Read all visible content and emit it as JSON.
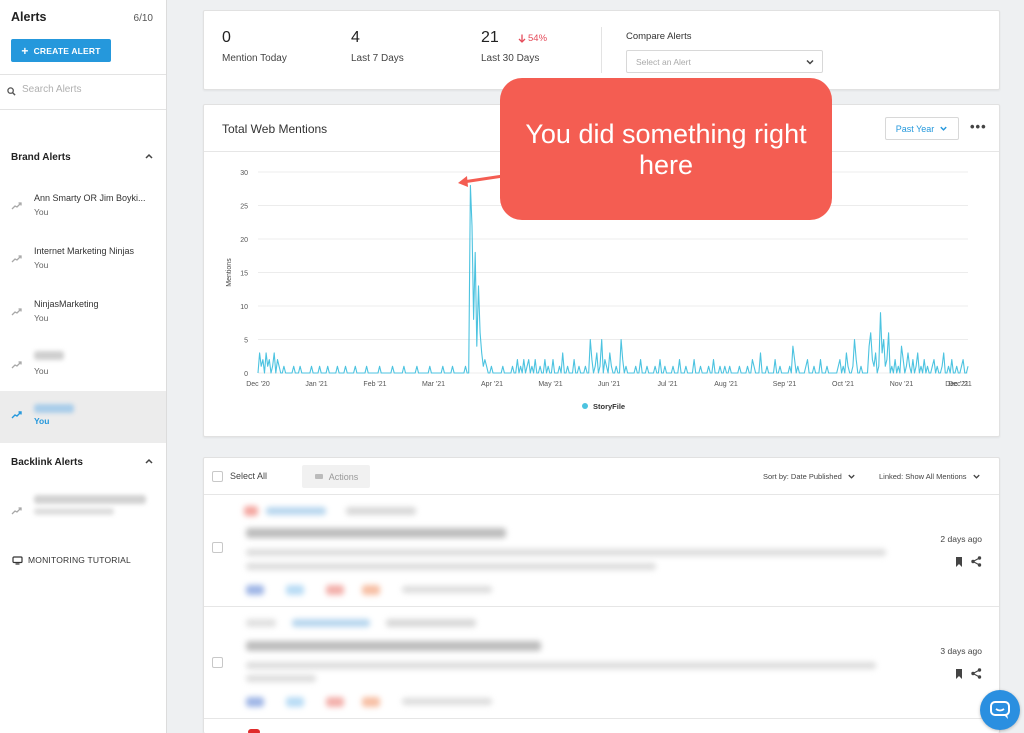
{
  "sidebar": {
    "title": "Alerts",
    "count": "6/10",
    "create_label": "CREATE ALERT",
    "search_placeholder": "Search Alerts",
    "brand_section": "Brand Alerts",
    "backlink_section": "Backlink Alerts",
    "alerts": [
      {
        "name": "Ann Smarty OR Jim Boyki...",
        "owner": "You"
      },
      {
        "name": "Internet Marketing Ninjas",
        "owner": "You"
      },
      {
        "name": "NinjasMarketing",
        "owner": "You"
      },
      {
        "name": "",
        "owner": "You"
      },
      {
        "name": "",
        "owner": "You"
      }
    ],
    "tutorial_label": "MONITORING TUTORIAL"
  },
  "stats": {
    "today": {
      "value": "0",
      "label": "Mention Today"
    },
    "week": {
      "value": "4",
      "label": "Last 7 Days"
    },
    "month": {
      "value": "21",
      "label": "Last 30 Days",
      "delta": "54%"
    },
    "compare_label": "Compare Alerts",
    "compare_placeholder": "Select an Alert"
  },
  "chart_card": {
    "title": "Total Web Mentions",
    "range": "Past Year",
    "more": "•••"
  },
  "callout": {
    "line1": "You did something right",
    "line2": "here"
  },
  "chart_data": {
    "type": "line",
    "ylabel": "Mentions",
    "ylim": [
      0,
      30
    ],
    "yticks": [
      0,
      5,
      10,
      15,
      20,
      25,
      30
    ],
    "x_ticks": [
      "Dec '20",
      "Jan '21",
      "Feb '21",
      "Mar '21",
      "Apr '21",
      "May '21",
      "Jun '21",
      "Jul '21",
      "Aug '21",
      "Sep '21",
      "Oct '21",
      "Nov '21",
      "Dec '21",
      "Dec '21"
    ],
    "series": [
      {
        "name": "StoryFile",
        "color": "#4cc3e0",
        "values": [
          0,
          3,
          1,
          2,
          0,
          3,
          1,
          2,
          0,
          1,
          3,
          0,
          2,
          1,
          0,
          0,
          1,
          0,
          0,
          0,
          0,
          0,
          1,
          0,
          0,
          0,
          1,
          0,
          0,
          0,
          0,
          0,
          0,
          1,
          0,
          0,
          0,
          0,
          1,
          0,
          0,
          0,
          0,
          1,
          0,
          0,
          0,
          0,
          0,
          1,
          0,
          0,
          0,
          0,
          1,
          0,
          0,
          0,
          0,
          0,
          1,
          0,
          0,
          0,
          0,
          0,
          0,
          1,
          0,
          0,
          0,
          0,
          0,
          0,
          0,
          1,
          0,
          0,
          0,
          0,
          0,
          0,
          0,
          1,
          0,
          0,
          0,
          0,
          0,
          0,
          1,
          0,
          0,
          0,
          0,
          0,
          0,
          0,
          1,
          0,
          0,
          0,
          0,
          0,
          0,
          0,
          1,
          0,
          0,
          0,
          0,
          0,
          0,
          0,
          1,
          0,
          0,
          0,
          0,
          0,
          1,
          0,
          0,
          0,
          0,
          0,
          0,
          0,
          1,
          0,
          0,
          28,
          22,
          8,
          18,
          4,
          13,
          6,
          3,
          1,
          2,
          1,
          0,
          0,
          1,
          0,
          0,
          0,
          0,
          0,
          0,
          1,
          0,
          0,
          0,
          0,
          0,
          1,
          0,
          0,
          2,
          0,
          1,
          0,
          2,
          0,
          1,
          2,
          0,
          1,
          0,
          2,
          0,
          0,
          1,
          0,
          0,
          2,
          0,
          1,
          0,
          0,
          2,
          0,
          0,
          0,
          1,
          0,
          3,
          0,
          0,
          1,
          0,
          0,
          0,
          2,
          0,
          0,
          1,
          0,
          0,
          0,
          1,
          0,
          0,
          5,
          2,
          0,
          1,
          3,
          0,
          1,
          5,
          0,
          2,
          1,
          0,
          3,
          1,
          0,
          0,
          1,
          0,
          0,
          5,
          2,
          0,
          1,
          0,
          0,
          0,
          0,
          0,
          1,
          0,
          0,
          2,
          0,
          0,
          0,
          1,
          0,
          0,
          0,
          0,
          1,
          0,
          0,
          2,
          0,
          0,
          1,
          0,
          0,
          0,
          0,
          1,
          0,
          0,
          0,
          2,
          0,
          0,
          0,
          1,
          0,
          0,
          0,
          0,
          2,
          0,
          0,
          0,
          1,
          0,
          0,
          0,
          0,
          1,
          0,
          0,
          2,
          0,
          0,
          0,
          1,
          0,
          0,
          1,
          0,
          0,
          1,
          0,
          0,
          0,
          0,
          0,
          1,
          0,
          0,
          0,
          0,
          1,
          0,
          0,
          2,
          1,
          0,
          0,
          0,
          3,
          0,
          0,
          0,
          1,
          0,
          0,
          0,
          0,
          2,
          0,
          0,
          1,
          0,
          0,
          0,
          0,
          0,
          1,
          0,
          4,
          2,
          0,
          1,
          0,
          0,
          0,
          0,
          1,
          2,
          0,
          0,
          0,
          1,
          0,
          0,
          0,
          2,
          0,
          0,
          0,
          1,
          0,
          0,
          0,
          0,
          0,
          0,
          1,
          2,
          0,
          1,
          0,
          3,
          1,
          0,
          0,
          1,
          5,
          2,
          0,
          0,
          1,
          0,
          0,
          0,
          0,
          4,
          6,
          2,
          1,
          3,
          0,
          1,
          9,
          3,
          5,
          1,
          2,
          6,
          0,
          1,
          0,
          2,
          0,
          1,
          0,
          4,
          2,
          0,
          1,
          3,
          1,
          0,
          2,
          0,
          1,
          3,
          0,
          1,
          0,
          2,
          0,
          1,
          0,
          0,
          1,
          2,
          0,
          1,
          0,
          0,
          1,
          3,
          0,
          0,
          1,
          0,
          2,
          0,
          0,
          1,
          0,
          0,
          1,
          2,
          0,
          0,
          1
        ]
      }
    ]
  },
  "list": {
    "select_all": "Select All",
    "actions": "Actions",
    "sort_label": "Sort by: Date Published",
    "linked_label": "Linked: Show All Mentions",
    "rows": [
      {
        "ago": "2 days ago"
      },
      {
        "ago": "3 days ago"
      }
    ]
  }
}
